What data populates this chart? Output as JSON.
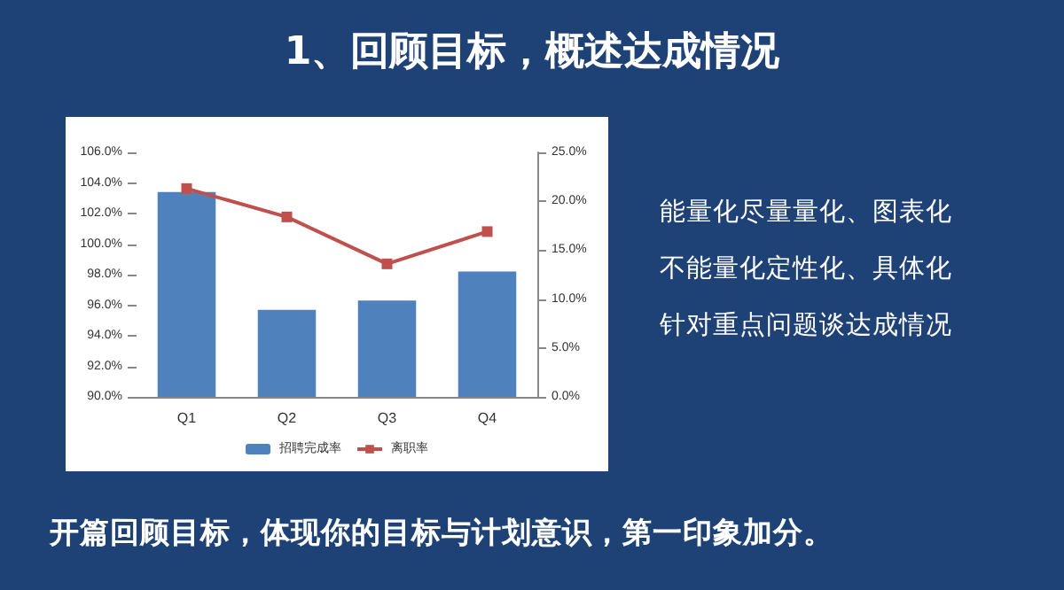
{
  "chart_data": {
    "type": "bar",
    "title": "1、回顾目标，概述达成情况",
    "categories": [
      "Q1",
      "Q2",
      "Q3",
      "Q4"
    ],
    "series": [
      {
        "name": "招聘完成率",
        "color": "#4f81bd",
        "values": [
          103.4,
          95.7,
          96.3,
          98.2
        ]
      },
      {
        "name": "离职率",
        "type": "line",
        "axis": "y2",
        "color": "#c0504d",
        "marker": "square",
        "values": [
          21.3,
          18.4,
          13.6,
          16.9
        ]
      }
    ],
    "ylim": [
      90,
      106
    ],
    "yticks": [
      {
        "value": 90,
        "label": "90.0%"
      },
      {
        "value": 92,
        "label": "92.0%"
      },
      {
        "value": 94,
        "label": "94.0%"
      },
      {
        "value": 96,
        "label": "96.0%"
      },
      {
        "value": 98,
        "label": "98.0%"
      },
      {
        "value": 100,
        "label": "100.0%"
      },
      {
        "value": 102,
        "label": "102.0%"
      },
      {
        "value": 104,
        "label": "104.0%"
      },
      {
        "value": 106,
        "label": "106.0%"
      }
    ],
    "y2lim": [
      0,
      25
    ],
    "y2ticks": [
      {
        "value": 0,
        "label": "0.0%"
      },
      {
        "value": 5,
        "label": "5.0%"
      },
      {
        "value": 10,
        "label": "10.0%"
      },
      {
        "value": 15,
        "label": "15.0%"
      },
      {
        "value": 20,
        "label": "20.0%"
      },
      {
        "value": 25,
        "label": "25.0%"
      }
    ],
    "grid": false,
    "legend": "bottom",
    "annotations": [
      "能量化尽量量化、图表化",
      "不能量化定性化、具体化",
      "针对重点问题谈达成情况",
      "开篇回顾目标，体现你的目标与计划意识，第一印象加分。"
    ]
  }
}
